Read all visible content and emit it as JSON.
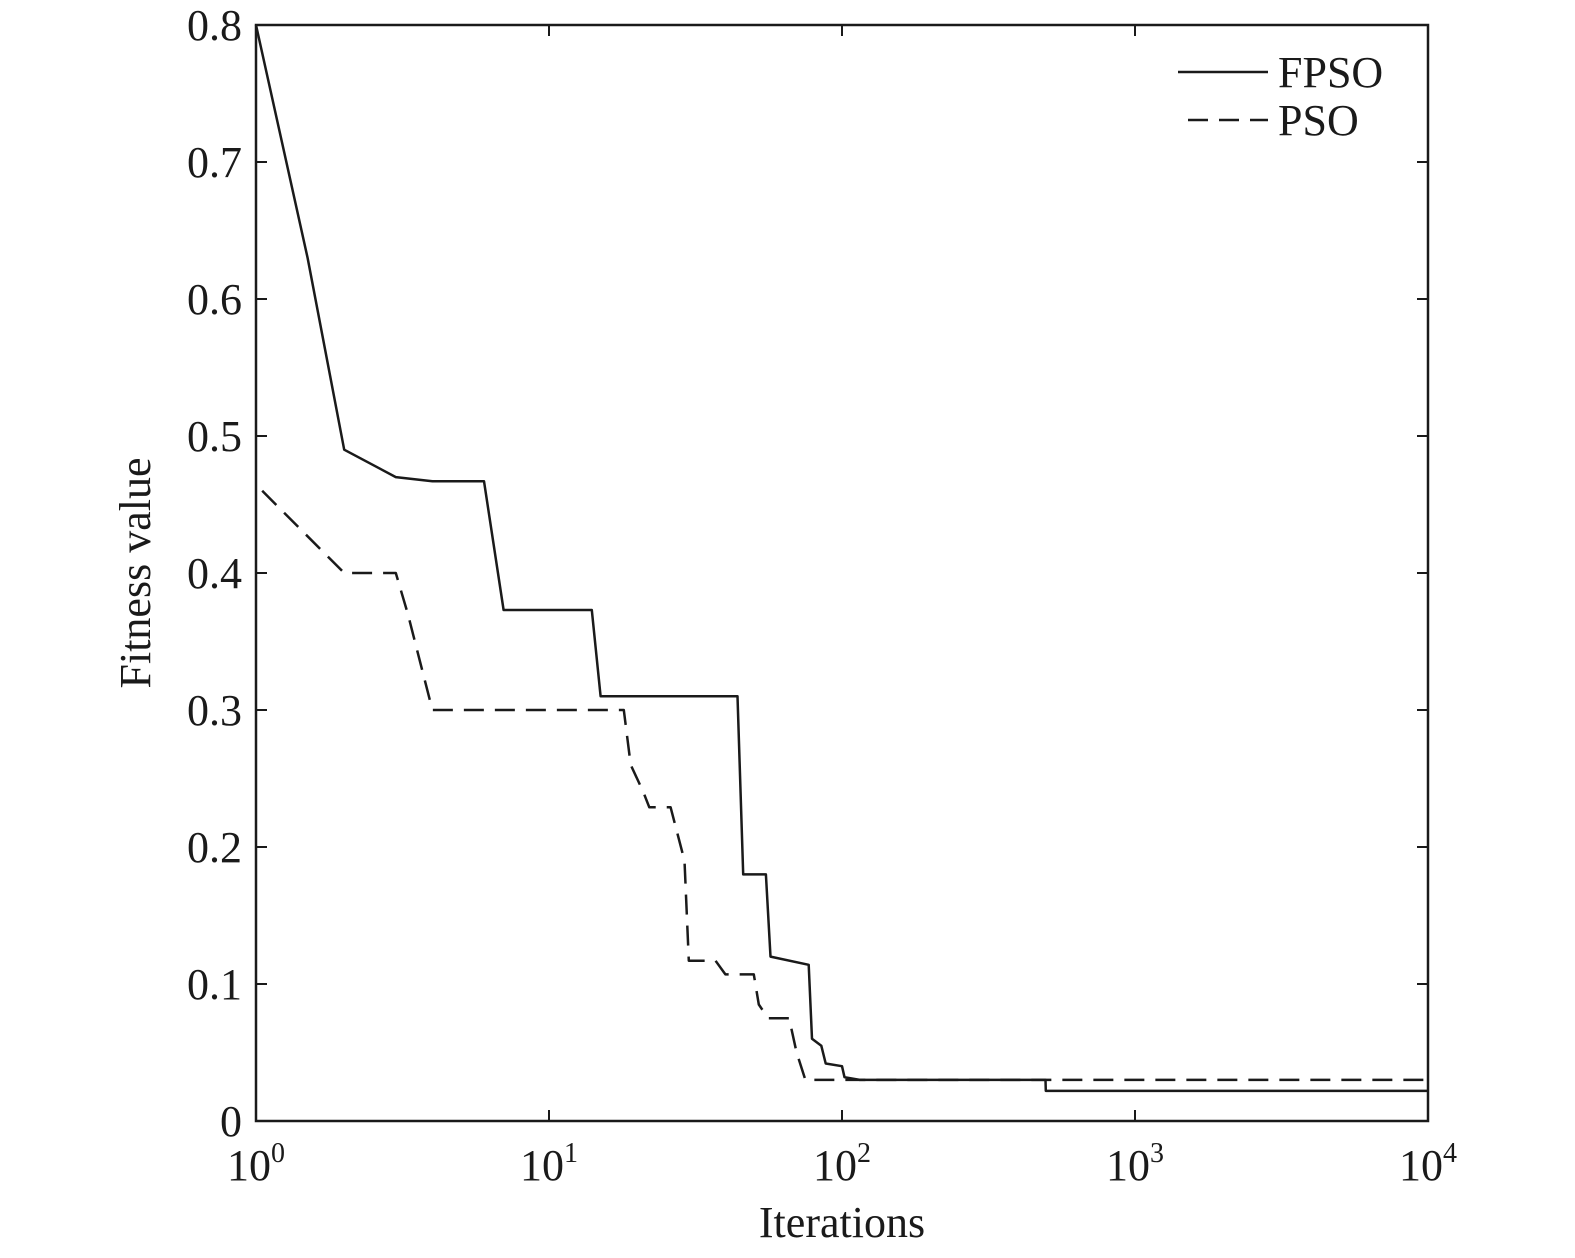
{
  "chart_data": {
    "type": "line",
    "title": "",
    "xlabel": "Iterations",
    "ylabel": "Fitness value",
    "xscale": "log",
    "xlim": [
      1,
      10000
    ],
    "ylim": [
      0,
      0.8
    ],
    "grid": false,
    "legend_position": "top-right",
    "xticks": [
      {
        "value": 1,
        "base": "10",
        "exp": "0"
      },
      {
        "value": 10,
        "base": "10",
        "exp": "1"
      },
      {
        "value": 100,
        "base": "10",
        "exp": "2"
      },
      {
        "value": 1000,
        "base": "10",
        "exp": "3"
      },
      {
        "value": 10000,
        "base": "10",
        "exp": "4"
      }
    ],
    "yticks": [
      {
        "value": 0,
        "label": "0"
      },
      {
        "value": 0.1,
        "label": "0.1"
      },
      {
        "value": 0.2,
        "label": "0.2"
      },
      {
        "value": 0.3,
        "label": "0.3"
      },
      {
        "value": 0.4,
        "label": "0.4"
      },
      {
        "value": 0.5,
        "label": "0.5"
      },
      {
        "value": 0.6,
        "label": "0.6"
      },
      {
        "value": 0.7,
        "label": "0.7"
      },
      {
        "value": 0.8,
        "label": "0.8"
      }
    ],
    "series": [
      {
        "name": "FPSO",
        "style": "solid",
        "color": "#1a1a1a",
        "points": [
          [
            1,
            0.8
          ],
          [
            1.5,
            0.63
          ],
          [
            2,
            0.49
          ],
          [
            3,
            0.47
          ],
          [
            4,
            0.467
          ],
          [
            6,
            0.467
          ],
          [
            7,
            0.373
          ],
          [
            14,
            0.373
          ],
          [
            15,
            0.31
          ],
          [
            44,
            0.31
          ],
          [
            46,
            0.18
          ],
          [
            55,
            0.18
          ],
          [
            57,
            0.12
          ],
          [
            77,
            0.114
          ],
          [
            79,
            0.06
          ],
          [
            85,
            0.055
          ],
          [
            88,
            0.042
          ],
          [
            100,
            0.04
          ],
          [
            102,
            0.032
          ],
          [
            115,
            0.03
          ],
          [
            495,
            0.03
          ],
          [
            496,
            0.022
          ],
          [
            10000,
            0.022
          ]
        ]
      },
      {
        "name": "PSO",
        "style": "dashed",
        "color": "#1a1a1a",
        "points": [
          [
            1.05,
            0.46
          ],
          [
            2,
            0.4
          ],
          [
            3,
            0.4
          ],
          [
            3.3,
            0.37
          ],
          [
            4,
            0.3
          ],
          [
            18,
            0.3
          ],
          [
            19,
            0.26
          ],
          [
            21,
            0.24
          ],
          [
            22,
            0.229
          ],
          [
            26,
            0.229
          ],
          [
            29,
            0.19
          ],
          [
            30,
            0.117
          ],
          [
            37,
            0.117
          ],
          [
            40,
            0.107
          ],
          [
            50,
            0.107
          ],
          [
            52,
            0.085
          ],
          [
            56,
            0.075
          ],
          [
            66,
            0.075
          ],
          [
            70,
            0.05
          ],
          [
            75,
            0.03
          ],
          [
            10000,
            0.03
          ]
        ]
      }
    ]
  }
}
